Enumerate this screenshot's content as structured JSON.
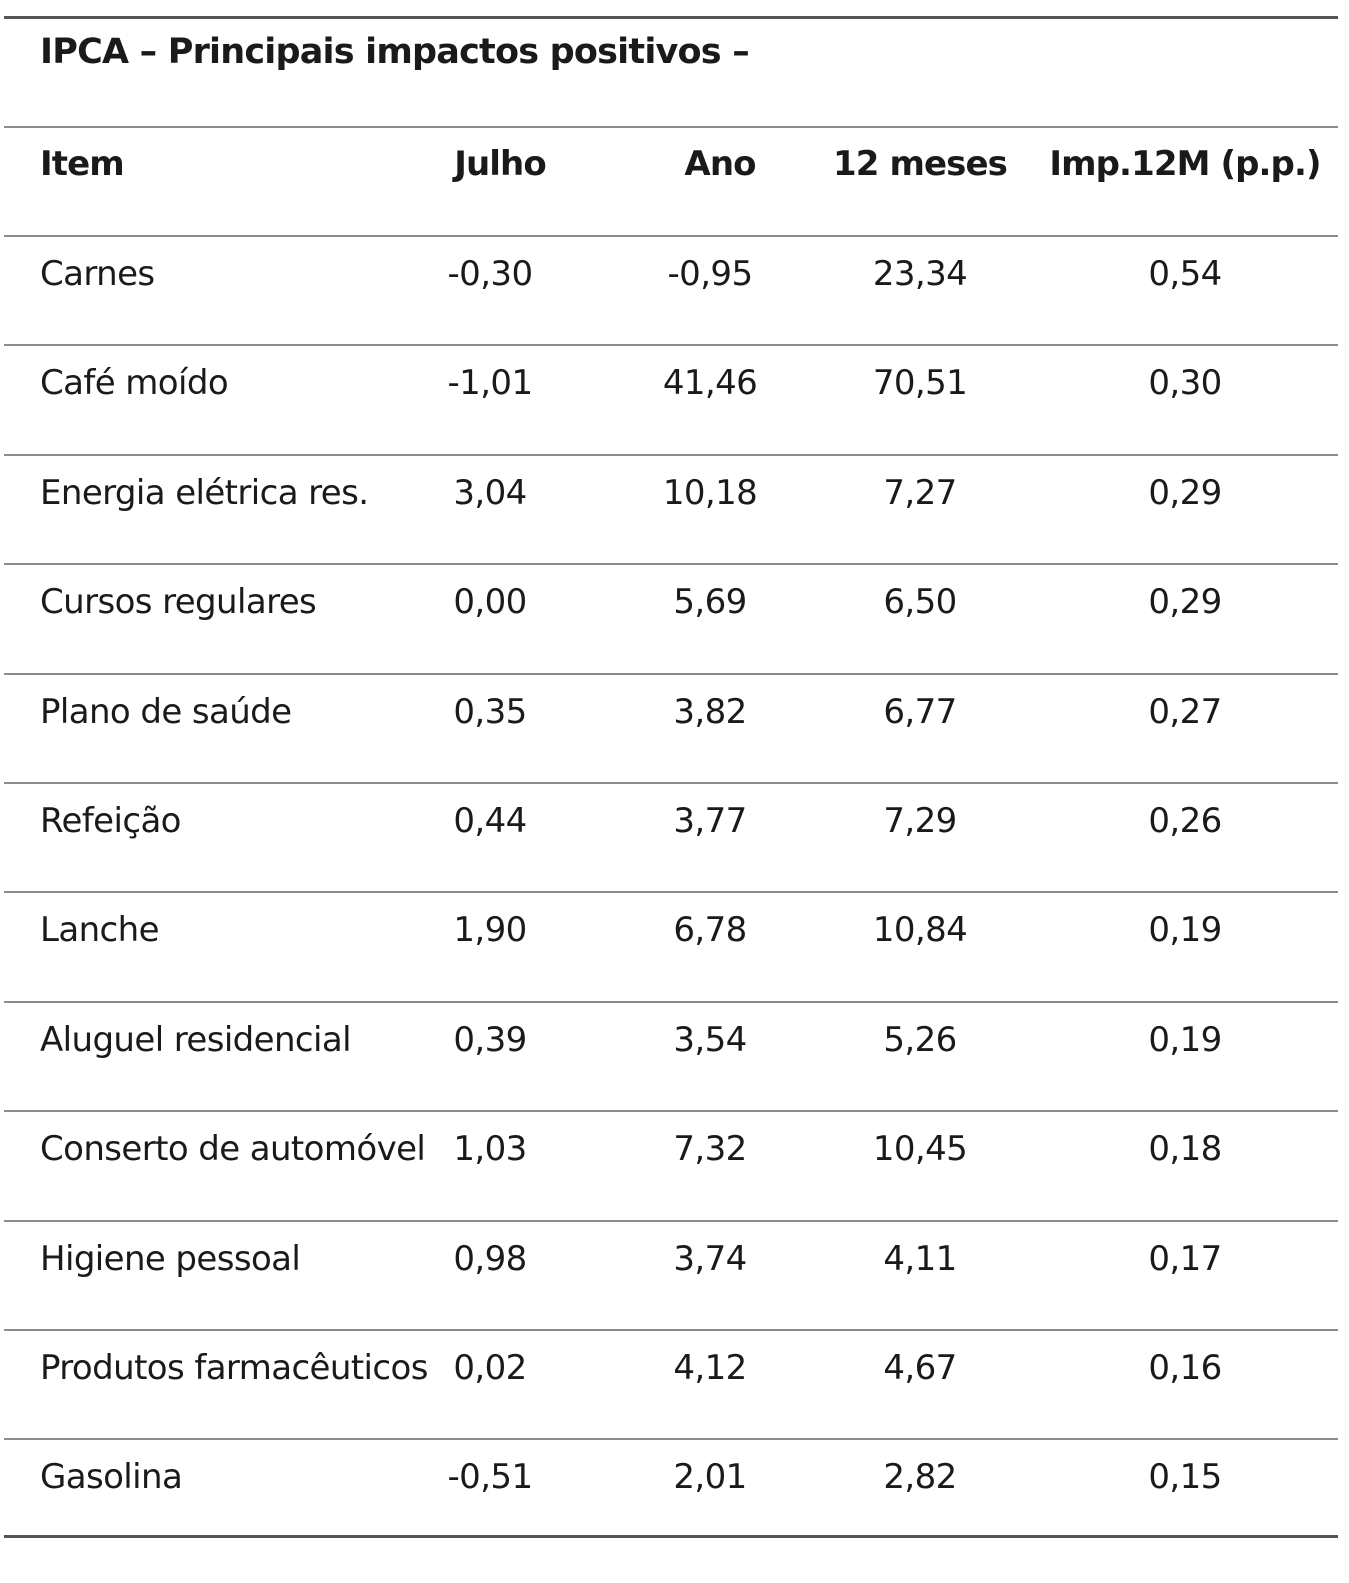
{
  "title": "IPCA – Principais impactos positivos –",
  "table": {
    "headers": {
      "item": "Item",
      "julho": "Julho",
      "ano": "Ano",
      "doze_meses": "12 meses",
      "impacto": "Imp.12M (p.p.)"
    },
    "rows": [
      {
        "item": "Carnes",
        "julho": "-0,30",
        "ano": "-0,95",
        "doze_meses": "23,34",
        "impacto": "0,54"
      },
      {
        "item": "Café moído",
        "julho": "-1,01",
        "ano": "41,46",
        "doze_meses": "70,51",
        "impacto": "0,30"
      },
      {
        "item": "Energia elétrica res.",
        "julho": "3,04",
        "ano": "10,18",
        "doze_meses": "7,27",
        "impacto": "0,29"
      },
      {
        "item": "Cursos regulares",
        "julho": "0,00",
        "ano": "5,69",
        "doze_meses": "6,50",
        "impacto": "0,29"
      },
      {
        "item": "Plano de saúde",
        "julho": "0,35",
        "ano": "3,82",
        "doze_meses": "6,77",
        "impacto": "0,27"
      },
      {
        "item": "Refeição",
        "julho": "0,44",
        "ano": "3,77",
        "doze_meses": "7,29",
        "impacto": "0,26"
      },
      {
        "item": "Lanche",
        "julho": "1,90",
        "ano": "6,78",
        "doze_meses": "10,84",
        "impacto": "0,19"
      },
      {
        "item": "Aluguel residencial",
        "julho": "0,39",
        "ano": "3,54",
        "doze_meses": "5,26",
        "impacto": "0,19"
      },
      {
        "item": "Conserto de automóvel",
        "julho": "1,03",
        "ano": "7,32",
        "doze_meses": "10,45",
        "impacto": "0,18"
      },
      {
        "item": "Higiene pessoal",
        "julho": "0,98",
        "ano": "3,74",
        "doze_meses": "4,11",
        "impacto": "0,17"
      },
      {
        "item": "Produtos farmacêuticos",
        "julho": "0,02",
        "ano": "4,12",
        "doze_meses": "4,67",
        "impacto": "0,16"
      },
      {
        "item": "Gasolina",
        "julho": "-0,51",
        "ano": "2,01",
        "doze_meses": "2,82",
        "impacto": "0,15"
      }
    ]
  }
}
